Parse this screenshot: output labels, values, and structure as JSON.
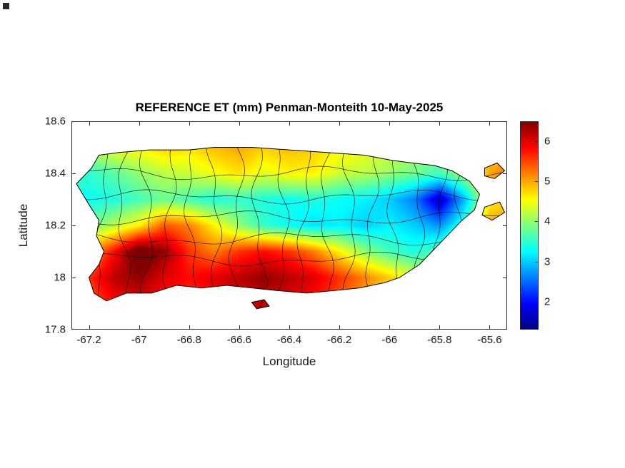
{
  "figure": {
    "title": "REFERENCE ET (mm) Penman-Monteith 10-May-2025",
    "xlabel": "Longitude",
    "ylabel": "Latitude",
    "background_color": "#ffffff",
    "text_color": "#1a1a1a"
  },
  "chart_data": {
    "type": "heatmap",
    "title": "REFERENCE ET (mm) Penman-Monteith 10-May-2025",
    "xlabel": "Longitude",
    "ylabel": "Latitude",
    "xlim": [
      -67.27,
      -65.53
    ],
    "ylim": [
      17.8,
      18.6
    ],
    "xticks": {
      "values": [
        -67.2,
        -67,
        -66.8,
        -66.6,
        -66.4,
        -66.2,
        -66,
        -65.8,
        -65.6
      ],
      "labels": [
        "-67.2",
        "-67",
        "-66.8",
        "-66.6",
        "-66.4",
        "-66.2",
        "-66",
        "-65.8",
        "-65.6"
      ]
    },
    "yticks": {
      "values": [
        18.6,
        18.4,
        18.2,
        18,
        17.8
      ],
      "labels": [
        "18.6",
        "18.4",
        "18.2",
        "18",
        "17.8"
      ]
    },
    "colormap": "jet",
    "clim": [
      1.3,
      6.5
    ],
    "colorbar": {
      "ticks": [
        2,
        3,
        4,
        5,
        6
      ],
      "labels": [
        "2",
        "3",
        "4",
        "5",
        "6"
      ]
    },
    "grid": {
      "lon": [
        -67.3,
        -67.2,
        -67.1,
        -67.0,
        -66.9,
        -66.8,
        -66.7,
        -66.6,
        -66.5,
        -66.4,
        -66.3,
        -66.2,
        -66.1,
        -66.0,
        -65.9,
        -65.8,
        -65.7,
        -65.6,
        -65.5
      ],
      "lat": [
        18.6,
        18.5,
        18.4,
        18.3,
        18.2,
        18.1,
        18.0,
        17.9
      ],
      "et_values": [
        [
          4.2,
          4.3,
          4.4,
          4.5,
          4.6,
          4.7,
          4.7,
          4.8,
          4.7,
          4.8,
          4.7,
          4.6,
          4.5,
          4.4,
          4.2,
          4.1,
          4.4,
          4.6,
          4.6
        ],
        [
          4.0,
          4.2,
          4.5,
          4.6,
          4.8,
          4.7,
          4.9,
          5.0,
          4.8,
          4.9,
          4.8,
          4.6,
          4.5,
          4.4,
          4.2,
          4.0,
          4.3,
          4.7,
          4.7
        ],
        [
          3.6,
          3.5,
          3.7,
          4.0,
          4.2,
          4.3,
          4.5,
          4.7,
          4.4,
          4.6,
          4.6,
          4.3,
          4.2,
          4.0,
          3.8,
          3.6,
          4.1,
          5.0,
          5.4
        ],
        [
          3.4,
          3.3,
          3.4,
          3.6,
          3.8,
          3.6,
          3.4,
          3.5,
          3.4,
          3.3,
          3.4,
          3.3,
          3.2,
          3.0,
          2.6,
          1.6,
          2.9,
          4.6,
          4.8
        ],
        [
          3.8,
          3.8,
          4.2,
          4.6,
          5.4,
          5.2,
          4.6,
          4.0,
          3.5,
          3.3,
          3.1,
          3.2,
          3.0,
          3.2,
          3.0,
          2.7,
          3.5,
          5.0,
          5.2
        ],
        [
          4.5,
          5.0,
          5.8,
          6.8,
          6.4,
          5.6,
          5.2,
          5.6,
          5.8,
          5.6,
          5.2,
          4.6,
          4.0,
          3.6,
          3.4,
          3.7,
          4.3,
          5.2,
          5.4
        ],
        [
          5.2,
          5.6,
          6.2,
          6.4,
          6.0,
          5.8,
          6.0,
          6.2,
          6.4,
          6.2,
          6.0,
          5.6,
          5.2,
          4.8,
          4.4,
          4.4,
          4.8,
          5.2,
          5.4
        ],
        [
          5.2,
          5.4,
          5.8,
          6.0,
          5.8,
          5.6,
          5.8,
          6.0,
          6.2,
          6.0,
          5.8,
          5.4,
          5.0,
          4.6,
          4.4,
          4.4,
          4.6,
          5.0,
          5.2
        ]
      ]
    },
    "island_outline": [
      [
        -67.25,
        18.36
      ],
      [
        -67.19,
        18.42
      ],
      [
        -67.16,
        18.47
      ],
      [
        -67.08,
        18.48
      ],
      [
        -66.96,
        18.49
      ],
      [
        -66.8,
        18.49
      ],
      [
        -66.7,
        18.5
      ],
      [
        -66.55,
        18.5
      ],
      [
        -66.4,
        18.49
      ],
      [
        -66.25,
        18.48
      ],
      [
        -66.1,
        18.47
      ],
      [
        -65.99,
        18.45
      ],
      [
        -65.91,
        18.44
      ],
      [
        -65.82,
        18.43
      ],
      [
        -65.75,
        18.41
      ],
      [
        -65.68,
        18.37
      ],
      [
        -65.64,
        18.32
      ],
      [
        -65.66,
        18.26
      ],
      [
        -65.71,
        18.22
      ],
      [
        -65.76,
        18.17
      ],
      [
        -65.82,
        18.11
      ],
      [
        -65.88,
        18.05
      ],
      [
        -65.96,
        18.0
      ],
      [
        -66.02,
        17.98
      ],
      [
        -66.12,
        17.96
      ],
      [
        -66.22,
        17.95
      ],
      [
        -66.33,
        17.94
      ],
      [
        -66.45,
        17.95
      ],
      [
        -66.55,
        17.96
      ],
      [
        -66.65,
        17.97
      ],
      [
        -66.75,
        17.96
      ],
      [
        -66.85,
        17.97
      ],
      [
        -66.95,
        17.94
      ],
      [
        -67.05,
        17.94
      ],
      [
        -67.13,
        17.91
      ],
      [
        -67.18,
        17.94
      ],
      [
        -67.2,
        18.0
      ],
      [
        -67.16,
        18.05
      ],
      [
        -67.14,
        18.1
      ],
      [
        -67.17,
        18.16
      ],
      [
        -67.16,
        18.22
      ],
      [
        -67.2,
        18.28
      ]
    ],
    "islets": [
      [
        [
          -65.62,
          18.42
        ],
        [
          -65.57,
          18.44
        ],
        [
          -65.54,
          18.41
        ],
        [
          -65.58,
          18.38
        ],
        [
          -65.62,
          18.39
        ]
      ],
      [
        [
          -65.62,
          18.27
        ],
        [
          -65.56,
          18.29
        ],
        [
          -65.54,
          18.25
        ],
        [
          -65.59,
          18.22
        ],
        [
          -65.63,
          18.24
        ]
      ],
      [
        [
          -66.55,
          17.905
        ],
        [
          -66.5,
          17.915
        ],
        [
          -66.48,
          17.89
        ],
        [
          -66.53,
          17.88
        ]
      ]
    ],
    "municipal_boundaries": {
      "meridians": [
        -67.15,
        -67.06,
        -66.97,
        -66.88,
        -66.79,
        -66.7,
        -66.61,
        -66.52,
        -66.43,
        -66.34,
        -66.25,
        -66.16,
        -66.07,
        -65.98,
        -65.89,
        -65.8,
        -65.71
      ],
      "parallels": [
        18.07,
        18.15,
        18.23,
        18.31,
        18.4
      ]
    }
  }
}
